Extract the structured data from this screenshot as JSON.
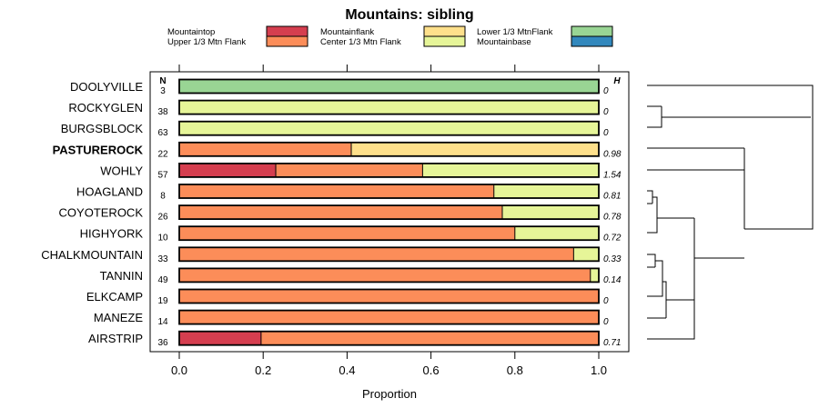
{
  "chart_data": {
    "type": "bar",
    "subtype": "stacked-horizontal-proportion",
    "title": "Mountains: sibling",
    "xlabel": "Proportion",
    "xlim": [
      0,
      1
    ],
    "xticks": [
      "0.0",
      "0.2",
      "0.4",
      "0.6",
      "0.8",
      "1.0"
    ],
    "n_header": "N",
    "h_header": "H",
    "highlight": "PASTUREROCK",
    "legend": [
      {
        "name": "Mountaintop",
        "color": "#d53e4f"
      },
      {
        "name": "Upper 1/3 Mtn Flank",
        "color": "#fc8d59"
      },
      {
        "name": "Mountainflank",
        "color": "#fee08b"
      },
      {
        "name": "Center 1/3 Mtn Flank",
        "color": "#e6f598"
      },
      {
        "name": "Lower 1/3 MtnFlank",
        "color": "#99d594"
      },
      {
        "name": "Mountainbase",
        "color": "#3288bd"
      }
    ],
    "rows": [
      {
        "label": "DOOLYVILLE",
        "n": "3",
        "h": "0",
        "segments": [
          {
            "cat": "Lower 1/3 MtnFlank",
            "value": 1.0
          }
        ]
      },
      {
        "label": "ROCKYGLEN",
        "n": "38",
        "h": "0",
        "segments": [
          {
            "cat": "Center 1/3 Mtn Flank",
            "value": 1.0
          }
        ]
      },
      {
        "label": "BURGSBLOCK",
        "n": "63",
        "h": "0",
        "segments": [
          {
            "cat": "Center 1/3 Mtn Flank",
            "value": 1.0
          }
        ]
      },
      {
        "label": "PASTUREROCK",
        "n": "22",
        "h": "0.98",
        "segments": [
          {
            "cat": "Upper 1/3 Mtn Flank",
            "value": 0.41
          },
          {
            "cat": "Mountainflank",
            "value": 0.59
          }
        ]
      },
      {
        "label": "WOHLY",
        "n": "57",
        "h": "1.54",
        "segments": [
          {
            "cat": "Mountaintop",
            "value": 0.23
          },
          {
            "cat": "Upper 1/3 Mtn Flank",
            "value": 0.35
          },
          {
            "cat": "Center 1/3 Mtn Flank",
            "value": 0.42
          }
        ]
      },
      {
        "label": "HOAGLAND",
        "n": "8",
        "h": "0.81",
        "segments": [
          {
            "cat": "Upper 1/3 Mtn Flank",
            "value": 0.75
          },
          {
            "cat": "Center 1/3 Mtn Flank",
            "value": 0.25
          }
        ]
      },
      {
        "label": "COYOTEROCK",
        "n": "26",
        "h": "0.78",
        "segments": [
          {
            "cat": "Upper 1/3 Mtn Flank",
            "value": 0.77
          },
          {
            "cat": "Center 1/3 Mtn Flank",
            "value": 0.23
          }
        ]
      },
      {
        "label": "HIGHYORK",
        "n": "10",
        "h": "0.72",
        "segments": [
          {
            "cat": "Upper 1/3 Mtn Flank",
            "value": 0.8
          },
          {
            "cat": "Center 1/3 Mtn Flank",
            "value": 0.2
          }
        ]
      },
      {
        "label": "CHALKMOUNTAIN",
        "n": "33",
        "h": "0.33",
        "segments": [
          {
            "cat": "Upper 1/3 Mtn Flank",
            "value": 0.94
          },
          {
            "cat": "Center 1/3 Mtn Flank",
            "value": 0.06
          }
        ]
      },
      {
        "label": "TANNIN",
        "n": "49",
        "h": "0.14",
        "segments": [
          {
            "cat": "Upper 1/3 Mtn Flank",
            "value": 0.98
          },
          {
            "cat": "Center 1/3 Mtn Flank",
            "value": 0.02
          }
        ]
      },
      {
        "label": "ELKCAMP",
        "n": "19",
        "h": "0",
        "segments": [
          {
            "cat": "Upper 1/3 Mtn Flank",
            "value": 1.0
          }
        ]
      },
      {
        "label": "MANEZE",
        "n": "14",
        "h": "0",
        "segments": [
          {
            "cat": "Upper 1/3 Mtn Flank",
            "value": 1.0
          }
        ]
      },
      {
        "label": "AIRSTRIP",
        "n": "36",
        "h": "0.71",
        "segments": [
          {
            "cat": "Mountaintop",
            "value": 0.195
          },
          {
            "cat": "Upper 1/3 Mtn Flank",
            "value": 0.805
          }
        ]
      }
    ]
  }
}
